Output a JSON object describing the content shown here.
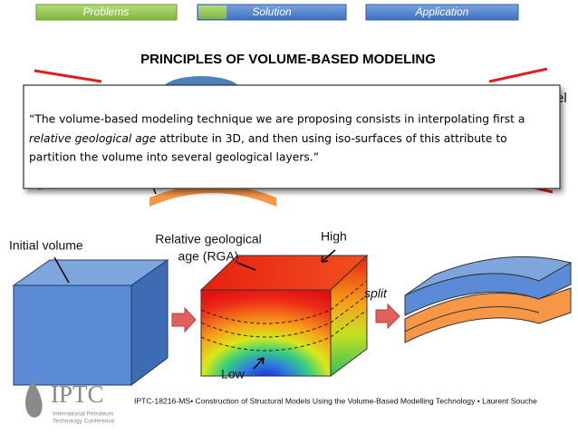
{
  "nav": {
    "tabs": [
      "Problems",
      "Solution",
      "Application"
    ]
  },
  "title": "PRINCIPLES OF VOLUME-BASED MODELING",
  "background_fragment": "el",
  "quote": {
    "parts": [
      "“The volume-based modeling technique we are proposing consists in interpolating first a",
      "relative geological age",
      " attribute in 3D, and then using iso-surfaces of this attribute to",
      "partition the volume into several geological layers.”"
    ]
  },
  "diagram": {
    "initial_label": "Initial volume",
    "rga_label": [
      "Relative geological",
      "age (RGA)"
    ],
    "high_label": "High",
    "low_label": "Low",
    "split_label": "split"
  },
  "logo": {
    "name": "IPTC",
    "lines": [
      "International Petroleum",
      "Technology Conference"
    ]
  },
  "footer": "IPTC-18216-MS• Construction of Structural Models Using the Volume-Based Modelling Technology • Laurent Souche"
}
